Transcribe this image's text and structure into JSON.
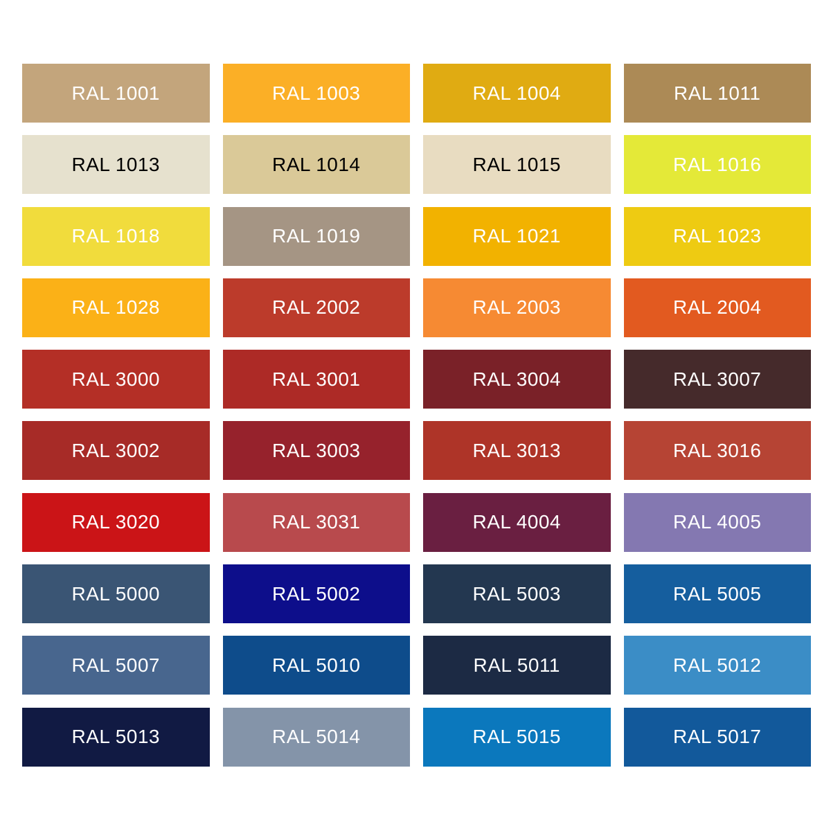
{
  "page": {
    "background": "#FFFFFF"
  },
  "grid": {
    "columns": 4,
    "rows": 10
  },
  "swatches": [
    {
      "label": "RAL 1001",
      "color": "#C3A57C",
      "text_color": "#FFFFFF"
    },
    {
      "label": "RAL 1003",
      "color": "#FBAF26",
      "text_color": "#FFFFFF"
    },
    {
      "label": "RAL 1004",
      "color": "#E0AB12",
      "text_color": "#FFFFFF"
    },
    {
      "label": "RAL 1011",
      "color": "#AC8A56",
      "text_color": "#FFFFFF"
    },
    {
      "label": "RAL 1013",
      "color": "#E6E1CE",
      "text_color": "#000000"
    },
    {
      "label": "RAL 1014",
      "color": "#DAC998",
      "text_color": "#000000"
    },
    {
      "label": "RAL 1015",
      "color": "#E8DCC1",
      "text_color": "#000000"
    },
    {
      "label": "RAL 1016",
      "color": "#E4E938",
      "text_color": "#FFFFFF"
    },
    {
      "label": "RAL 1018",
      "color": "#F1DC3C",
      "text_color": "#FFFFFF"
    },
    {
      "label": "RAL 1019",
      "color": "#A59584",
      "text_color": "#FFFFFF"
    },
    {
      "label": "RAL 1021",
      "color": "#F2B200",
      "text_color": "#FFFFFF"
    },
    {
      "label": "RAL 1023",
      "color": "#EECB12",
      "text_color": "#FFFFFF"
    },
    {
      "label": "RAL 1028",
      "color": "#FBB117",
      "text_color": "#FFFFFF"
    },
    {
      "label": "RAL 2002",
      "color": "#BC3B2B",
      "text_color": "#FFFFFF"
    },
    {
      "label": "RAL 2003",
      "color": "#F68A33",
      "text_color": "#FFFFFF"
    },
    {
      "label": "RAL 2004",
      "color": "#E25A20",
      "text_color": "#FFFFFF"
    },
    {
      "label": "RAL 3000",
      "color": "#B42F26",
      "text_color": "#FFFFFF"
    },
    {
      "label": "RAL 3001",
      "color": "#AD2A26",
      "text_color": "#FFFFFF"
    },
    {
      "label": "RAL 3004",
      "color": "#7A2128",
      "text_color": "#FFFFFF"
    },
    {
      "label": "RAL 3007",
      "color": "#452A2B",
      "text_color": "#FFFFFF"
    },
    {
      "label": "RAL 3002",
      "color": "#A72B27",
      "text_color": "#FFFFFF"
    },
    {
      "label": "RAL 3003",
      "color": "#96222C",
      "text_color": "#FFFFFF"
    },
    {
      "label": "RAL 3013",
      "color": "#AE3428",
      "text_color": "#FFFFFF"
    },
    {
      "label": "RAL 3016",
      "color": "#B64434",
      "text_color": "#FFFFFF"
    },
    {
      "label": "RAL 3020",
      "color": "#CB1417",
      "text_color": "#FFFFFF"
    },
    {
      "label": "RAL 3031",
      "color": "#B84A4D",
      "text_color": "#FFFFFF"
    },
    {
      "label": "RAL 4004",
      "color": "#6A1F41",
      "text_color": "#FFFFFF"
    },
    {
      "label": "RAL 4005",
      "color": "#8478B1",
      "text_color": "#FFFFFF"
    },
    {
      "label": "RAL 5000",
      "color": "#3A5574",
      "text_color": "#FFFFFF"
    },
    {
      "label": "RAL 5002",
      "color": "#0D0E8B",
      "text_color": "#FFFFFF"
    },
    {
      "label": "RAL 5003",
      "color": "#233750",
      "text_color": "#FFFFFF"
    },
    {
      "label": "RAL 5005",
      "color": "#155E9E",
      "text_color": "#FFFFFF"
    },
    {
      "label": "RAL 5007",
      "color": "#48668E",
      "text_color": "#FFFFFF"
    },
    {
      "label": "RAL 5010",
      "color": "#0E4C8B",
      "text_color": "#FFFFFF"
    },
    {
      "label": "RAL 5011",
      "color": "#1C2A44",
      "text_color": "#FFFFFF"
    },
    {
      "label": "RAL 5012",
      "color": "#3B8DC6",
      "text_color": "#FFFFFF"
    },
    {
      "label": "RAL 5013",
      "color": "#111A43",
      "text_color": "#FFFFFF"
    },
    {
      "label": "RAL 5014",
      "color": "#8494A9",
      "text_color": "#FFFFFF"
    },
    {
      "label": "RAL 5015",
      "color": "#0B78BD",
      "text_color": "#FFFFFF"
    },
    {
      "label": "RAL 5017",
      "color": "#12599B",
      "text_color": "#FFFFFF"
    }
  ],
  "chart_data": {
    "type": "table",
    "layout": {
      "columns": 4,
      "rows": 10,
      "grid": true,
      "background": "#FFFFFF"
    },
    "entries": [
      {
        "code": "RAL 1001",
        "hex": "#C3A57C"
      },
      {
        "code": "RAL 1003",
        "hex": "#FBAF26"
      },
      {
        "code": "RAL 1004",
        "hex": "#E0AB12"
      },
      {
        "code": "RAL 1011",
        "hex": "#AC8A56"
      },
      {
        "code": "RAL 1013",
        "hex": "#E6E1CE"
      },
      {
        "code": "RAL 1014",
        "hex": "#DAC998"
      },
      {
        "code": "RAL 1015",
        "hex": "#E8DCC1"
      },
      {
        "code": "RAL 1016",
        "hex": "#E4E938"
      },
      {
        "code": "RAL 1018",
        "hex": "#F1DC3C"
      },
      {
        "code": "RAL 1019",
        "hex": "#A59584"
      },
      {
        "code": "RAL 1021",
        "hex": "#F2B200"
      },
      {
        "code": "RAL 1023",
        "hex": "#EECB12"
      },
      {
        "code": "RAL 1028",
        "hex": "#FBB117"
      },
      {
        "code": "RAL 2002",
        "hex": "#BC3B2B"
      },
      {
        "code": "RAL 2003",
        "hex": "#F68A33"
      },
      {
        "code": "RAL 2004",
        "hex": "#E25A20"
      },
      {
        "code": "RAL 3000",
        "hex": "#B42F26"
      },
      {
        "code": "RAL 3001",
        "hex": "#AD2A26"
      },
      {
        "code": "RAL 3004",
        "hex": "#7A2128"
      },
      {
        "code": "RAL 3007",
        "hex": "#452A2B"
      },
      {
        "code": "RAL 3002",
        "hex": "#A72B27"
      },
      {
        "code": "RAL 3003",
        "hex": "#96222C"
      },
      {
        "code": "RAL 3013",
        "hex": "#AE3428"
      },
      {
        "code": "RAL 3016",
        "hex": "#B64434"
      },
      {
        "code": "RAL 3020",
        "hex": "#CB1417"
      },
      {
        "code": "RAL 3031",
        "hex": "#B84A4D"
      },
      {
        "code": "RAL 4004",
        "hex": "#6A1F41"
      },
      {
        "code": "RAL 4005",
        "hex": "#8478B1"
      },
      {
        "code": "RAL 5000",
        "hex": "#3A5574"
      },
      {
        "code": "RAL 5002",
        "hex": "#0D0E8B"
      },
      {
        "code": "RAL 5003",
        "hex": "#233750"
      },
      {
        "code": "RAL 5005",
        "hex": "#155E9E"
      },
      {
        "code": "RAL 5007",
        "hex": "#48668E"
      },
      {
        "code": "RAL 5010",
        "hex": "#0E4C8B"
      },
      {
        "code": "RAL 5011",
        "hex": "#1C2A44"
      },
      {
        "code": "RAL 5012",
        "hex": "#3B8DC6"
      },
      {
        "code": "RAL 5013",
        "hex": "#111A43"
      },
      {
        "code": "RAL 5015",
        "hex": "#0B78BD"
      },
      {
        "code": "RAL 5014",
        "hex": "#8494A9"
      },
      {
        "code": "RAL 5017",
        "hex": "#12599B"
      }
    ]
  }
}
